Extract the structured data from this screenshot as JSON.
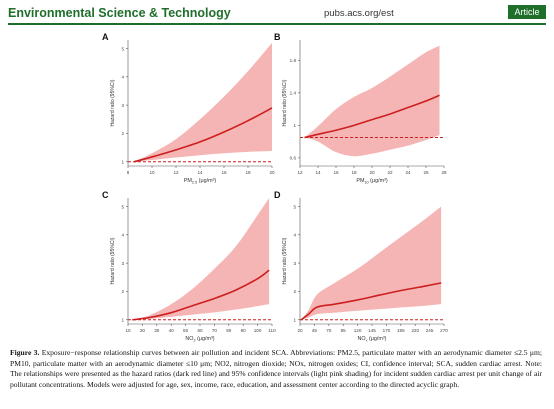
{
  "header": {
    "journal": "Environmental Science & Technology",
    "url": "pubs.acs.org/est",
    "article_label": "Article"
  },
  "colors": {
    "brand_green": "#1f6f2b",
    "line_red": "#cc1f1f",
    "band_pink": "#f5a8a8",
    "reference_dashed": "#cc1f1f"
  },
  "chart_data": [
    {
      "panel": "A",
      "type": "area",
      "ylabel": "Hazard ratio (95%CI)",
      "xlabel": "PM2.5 (μg/m³)",
      "xlabel_main": "PM",
      "xlabel_sub": "2.5",
      "xlabel_unit": " (μg/m³)",
      "xlim": [
        8,
        20
      ],
      "ylim": [
        0.85,
        5.3
      ],
      "xticks": [
        8,
        10,
        12,
        14,
        16,
        18,
        20
      ],
      "yticks": [
        1,
        2,
        3,
        4,
        5
      ],
      "reference": 1,
      "x": [
        8.5,
        10,
        12,
        14,
        16,
        18,
        20
      ],
      "hr": [
        1.0,
        1.17,
        1.42,
        1.7,
        2.05,
        2.45,
        2.9
      ],
      "lower": [
        1.0,
        1.06,
        1.15,
        1.23,
        1.3,
        1.35,
        1.38
      ],
      "upper": [
        1.0,
        1.3,
        1.8,
        2.5,
        3.3,
        4.2,
        5.2
      ]
    },
    {
      "panel": "B",
      "type": "area",
      "ylabel": "Hazard ratio (95%CI)",
      "xlabel": "PM10 (μg/m³)",
      "xlabel_main": "PM",
      "xlabel_sub": "10",
      "xlabel_unit": " (μg/m³)",
      "xlim": [
        12,
        28
      ],
      "ylim": [
        0.5,
        2.05
      ],
      "xticks": [
        12,
        14,
        16,
        18,
        20,
        22,
        24,
        26,
        28
      ],
      "yticks": [
        0.6,
        1.0,
        1.4,
        1.8
      ],
      "ytick_labels": [
        "0.6",
        "1",
        "1.4",
        "1.8"
      ],
      "reference": 0.85,
      "x": [
        12.5,
        14,
        16,
        18,
        20,
        22,
        24,
        26,
        27.5
      ],
      "hr": [
        0.85,
        0.89,
        0.94,
        1.0,
        1.07,
        1.14,
        1.22,
        1.3,
        1.37
      ],
      "lower": [
        0.85,
        0.8,
        0.67,
        0.62,
        0.65,
        0.7,
        0.75,
        0.82,
        0.88
      ],
      "upper": [
        0.85,
        0.99,
        1.2,
        1.35,
        1.46,
        1.6,
        1.75,
        1.9,
        1.98
      ]
    },
    {
      "panel": "C",
      "type": "area",
      "ylabel": "Hazard ratio (95%CI)",
      "xlabel": "NO2 (μg/m³)",
      "xlabel_main": "NO",
      "xlabel_sub": "2",
      "xlabel_unit": " (μg/m³)",
      "xlim": [
        10,
        110
      ],
      "ylim": [
        0.85,
        5.3
      ],
      "xticks": [
        10,
        20,
        30,
        40,
        50,
        60,
        70,
        80,
        90,
        100,
        110
      ],
      "yticks": [
        1,
        2,
        3,
        4,
        5
      ],
      "reference": 1,
      "x": [
        13,
        25,
        40,
        55,
        70,
        85,
        100,
        108
      ],
      "hr": [
        1.0,
        1.08,
        1.25,
        1.5,
        1.75,
        2.05,
        2.45,
        2.75
      ],
      "lower": [
        1.0,
        1.03,
        1.1,
        1.18,
        1.26,
        1.36,
        1.48,
        1.55
      ],
      "upper": [
        1.0,
        1.16,
        1.55,
        2.1,
        2.8,
        3.6,
        4.7,
        5.3
      ]
    },
    {
      "panel": "D",
      "type": "area",
      "ylabel": "Hazard ratio (95%CI)",
      "xlabel": "NOx (μg/m³)",
      "xlabel_main": "NO",
      "xlabel_sub": "x",
      "xlabel_unit": " (μg/m³)",
      "xlim": [
        20,
        270
      ],
      "ylim": [
        0.85,
        5.3
      ],
      "xticks": [
        20,
        45,
        70,
        95,
        120,
        145,
        170,
        195,
        220,
        245,
        270
      ],
      "yticks": [
        1,
        2,
        3,
        4,
        5
      ],
      "reference": 1,
      "x": [
        22,
        35,
        50,
        80,
        120,
        160,
        200,
        240,
        265
      ],
      "hr": [
        1.0,
        1.2,
        1.45,
        1.55,
        1.7,
        1.88,
        2.05,
        2.2,
        2.3
      ],
      "lower": [
        1.0,
        1.08,
        1.2,
        1.25,
        1.32,
        1.38,
        1.44,
        1.5,
        1.55
      ],
      "upper": [
        1.0,
        1.35,
        1.9,
        2.3,
        2.8,
        3.4,
        4.0,
        4.6,
        5.0
      ]
    }
  ],
  "caption": {
    "label": "Figure 3.",
    "text": " Exposure−response relationship curves between air pollution and incident SCA. Abbreviations: PM2.5, particulate matter with an aerodynamic diameter ≤2.5 μm; PM10, particulate matter with an aerodynamic diameter ≤10 μm; NO2, nitrogen dioxide; NOx, nitrogen oxides; CI, confidence interval; SCA, sudden cardiac arrest. Note: The relationships were presented as the hazard ratios (dark red line) and 95% confidence intervals (light pink shading) for incident sudden cardiac arrest per unit change of air pollutant concentrations. Models were adjusted for age, sex, income, race, education, and assessment center according to the directed acyclic graph."
  }
}
